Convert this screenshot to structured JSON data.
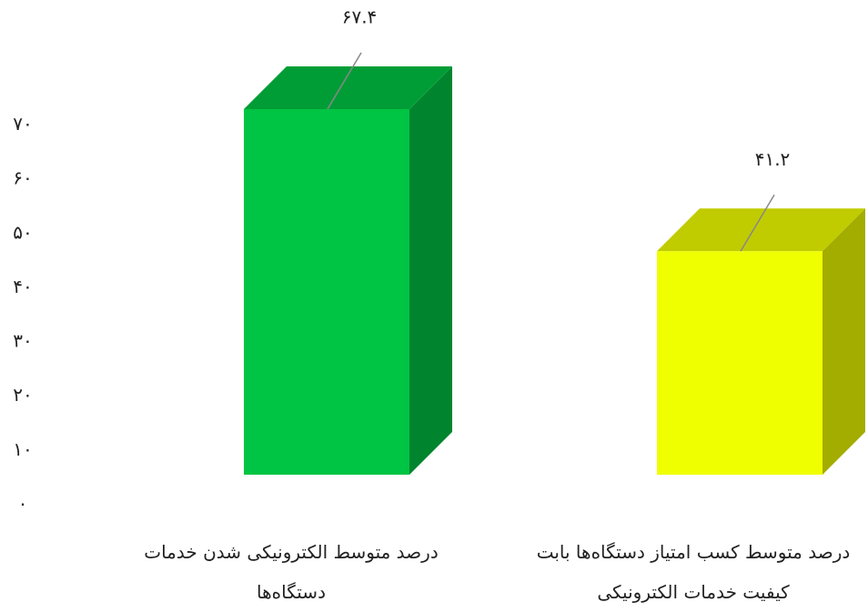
{
  "chart_data": {
    "type": "bar3d",
    "categories": [
      "درصد متوسط الکترونیکی شدن خدمات دستگاه‌ها",
      "درصد متوسط کسب امتیاز دستگاه‌ها بابت کیفیت خدمات الکترونیکی"
    ],
    "values": [
      67.4,
      41.2
    ],
    "value_labels": [
      "۶۷.۴",
      "۴۱.۲"
    ],
    "colors": [
      "#00c443",
      "#f0ff00"
    ],
    "ylim": [
      0,
      70
    ],
    "yticks": [
      {
        "value": 0,
        "label": "۰"
      },
      {
        "value": 10,
        "label": "۱۰"
      },
      {
        "value": 20,
        "label": "۲۰"
      },
      {
        "value": 30,
        "label": "۳۰"
      },
      {
        "value": 40,
        "label": "۴۰"
      },
      {
        "value": 50,
        "label": "۵۰"
      },
      {
        "value": 60,
        "label": "۶۰"
      },
      {
        "value": 70,
        "label": "۷۰"
      }
    ],
    "grid": false
  }
}
